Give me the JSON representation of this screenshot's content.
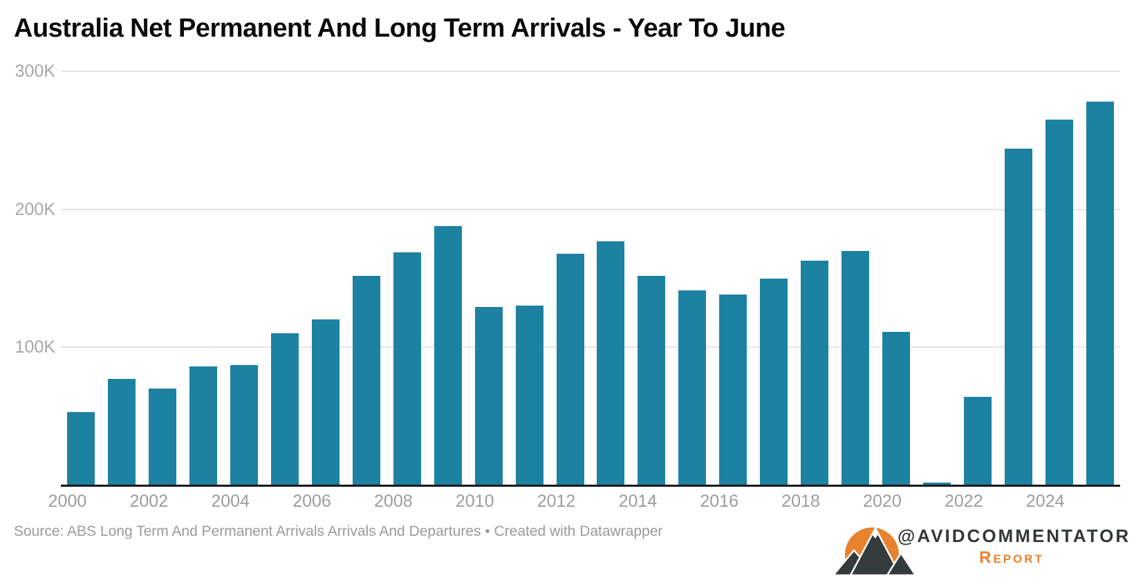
{
  "title": "Australia Net Permanent And Long Term Arrivals - Year To June",
  "chart_data": {
    "type": "bar",
    "x": [
      2000,
      2001,
      2002,
      2003,
      2004,
      2005,
      2006,
      2007,
      2008,
      2009,
      2010,
      2011,
      2012,
      2013,
      2014,
      2015,
      2016,
      2017,
      2018,
      2019,
      2020,
      2021,
      2022,
      2023,
      2024,
      2025
    ],
    "values": [
      53000,
      77000,
      70000,
      86000,
      87000,
      110000,
      120000,
      152000,
      169000,
      188000,
      129000,
      130000,
      168000,
      177000,
      152000,
      141000,
      138000,
      150000,
      163000,
      170000,
      111000,
      2000,
      64000,
      244000,
      265000,
      278000
    ],
    "title": "Australia Net Permanent And Long Term Arrivals - Year To June",
    "xlabel": "",
    "ylabel": "",
    "unit": "persons",
    "ylim": [
      0,
      300000
    ],
    "ytick_labels": [
      "100K",
      "200K",
      "300K"
    ],
    "ytick_values": [
      100000,
      200000,
      300000
    ],
    "xtick_labels": [
      "2000",
      "2002",
      "2004",
      "2006",
      "2008",
      "2010",
      "2012",
      "2014",
      "2016",
      "2018",
      "2020",
      "2022",
      "2024"
    ],
    "grid": true,
    "legend": "none",
    "bar_color": "#1d81a2"
  },
  "footer": {
    "source": "Source: ABS Long Term And Permanent Arrivals Arrivals And Departures • Created with Datawrapper"
  },
  "branding": {
    "handle": "@AVIDCOMMENTATOR",
    "report_label": "Report",
    "orange": "#e8822e",
    "mountain_color": "#343b3d",
    "logo": "mountain-sun-logo"
  }
}
